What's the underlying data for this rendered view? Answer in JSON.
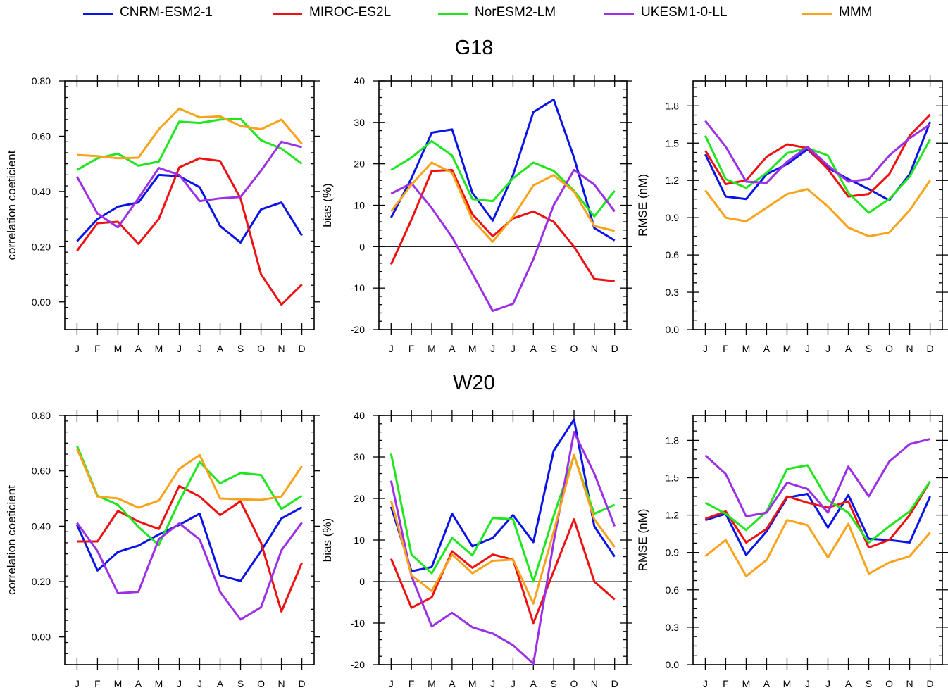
{
  "colors": {
    "CNRM-ESM2-1": "#0a14e6",
    "MIROC-ES2L": "#ee1111",
    "NorESM2-LM": "#1fe61f",
    "UKESM1-0-LL": "#9b30e6",
    "MMM": "#f9a21b"
  },
  "legend": [
    {
      "label": "CNRM-ESM2-1",
      "color": "#0a14e6"
    },
    {
      "label": "MIROC-ES2L",
      "color": "#ee1111"
    },
    {
      "label": "NorESM2-LM",
      "color": "#1fe61f"
    },
    {
      "label": "UKESM1-0-LL",
      "color": "#9b30e6"
    },
    {
      "label": "MMM",
      "color": "#f9a21b"
    }
  ],
  "row_titles": [
    "G18",
    "W20"
  ],
  "chart_data": [
    {
      "type": "line",
      "row": "G18",
      "metric": "corr",
      "categories": [
        "J",
        "F",
        "M",
        "A",
        "M",
        "J",
        "J",
        "A",
        "S",
        "O",
        "N",
        "D"
      ],
      "ylabel": "correlation coeticient",
      "ylim": [
        -0.1,
        0.8
      ],
      "yticks": [
        0.0,
        0.2,
        0.4,
        0.6,
        0.8
      ],
      "ytick_labels": [
        "0.00",
        "0.20",
        "0.40",
        "0.60",
        "0.80"
      ],
      "series": [
        {
          "name": "CNRM-ESM2-1",
          "values": [
            0.22,
            0.3,
            0.345,
            0.36,
            0.46,
            0.455,
            0.415,
            0.275,
            0.215,
            0.335,
            0.36,
            0.24
          ]
        },
        {
          "name": "MIROC-ES2L",
          "values": [
            0.185,
            0.285,
            0.29,
            0.21,
            0.3,
            0.487,
            0.52,
            0.51,
            0.375,
            0.1,
            -0.01,
            0.063
          ]
        },
        {
          "name": "NorESM2-LM",
          "values": [
            0.478,
            0.52,
            0.537,
            0.493,
            0.508,
            0.653,
            0.648,
            0.66,
            0.663,
            0.585,
            0.555,
            0.5
          ]
        },
        {
          "name": "UKESM1-0-LL",
          "values": [
            0.453,
            0.32,
            0.27,
            0.375,
            0.485,
            0.46,
            0.365,
            0.375,
            0.38,
            0.475,
            0.58,
            0.56
          ]
        },
        {
          "name": "MMM",
          "values": [
            0.532,
            0.528,
            0.52,
            0.522,
            0.625,
            0.7,
            0.668,
            0.672,
            0.637,
            0.625,
            0.66,
            0.572
          ]
        }
      ]
    },
    {
      "type": "line",
      "row": "G18",
      "metric": "bias",
      "categories": [
        "J",
        "F",
        "M",
        "A",
        "M",
        "J",
        "J",
        "A",
        "S",
        "O",
        "N",
        "D"
      ],
      "ylabel": "bias (%)",
      "ylim": [
        -20,
        40
      ],
      "yticks": [
        -20,
        -10,
        0,
        10,
        20,
        30,
        40
      ],
      "ytick_labels": [
        "-20",
        "-10",
        "0",
        "10",
        "20",
        "30",
        "40"
      ],
      "zero_line": true,
      "series": [
        {
          "name": "CNRM-ESM2-1",
          "values": [
            7,
            16.5,
            27.5,
            28.3,
            13,
            6.3,
            17.3,
            32.5,
            35.5,
            21.5,
            4.5,
            1.5
          ]
        },
        {
          "name": "MIROC-ES2L",
          "values": [
            -4.3,
            6.5,
            18.3,
            18.5,
            7.8,
            2.5,
            6.8,
            8.5,
            6,
            0,
            -7.8,
            -8.3
          ]
        },
        {
          "name": "NorESM2-LM",
          "values": [
            18.5,
            21.5,
            25.5,
            22,
            11.5,
            11,
            16.5,
            20.3,
            18.3,
            13.5,
            7.3,
            13.5
          ]
        },
        {
          "name": "UKESM1-0-LL",
          "values": [
            12.8,
            15.3,
            9.3,
            2.3,
            -6.5,
            -15.5,
            -13.8,
            -3,
            10,
            18.5,
            15,
            8.5
          ]
        },
        {
          "name": "MMM",
          "values": [
            8.5,
            15,
            20.3,
            17.8,
            6.5,
            1.2,
            7.2,
            14.8,
            17.3,
            13.3,
            5,
            3.8
          ]
        }
      ]
    },
    {
      "type": "line",
      "row": "G18",
      "metric": "rmse",
      "categories": [
        "J",
        "F",
        "M",
        "A",
        "M",
        "J",
        "J",
        "A",
        "S",
        "O",
        "N",
        "D"
      ],
      "ylabel": "RMSE (nM)",
      "ylim": [
        0,
        2.0
      ],
      "yticks": [
        0.0,
        0.3,
        0.6,
        0.9,
        1.2,
        1.5,
        1.8
      ],
      "ytick_labels": [
        "0.0",
        "0.3",
        "0.6",
        "0.9",
        "1.2",
        "1.5",
        "1.8"
      ],
      "series": [
        {
          "name": "CNRM-ESM2-1",
          "values": [
            1.41,
            1.07,
            1.05,
            1.25,
            1.33,
            1.45,
            1.3,
            1.21,
            1.13,
            1.04,
            1.25,
            1.67
          ]
        },
        {
          "name": "MIROC-ES2L",
          "values": [
            1.44,
            1.17,
            1.2,
            1.39,
            1.49,
            1.46,
            1.29,
            1.07,
            1.09,
            1.25,
            1.56,
            1.73
          ]
        },
        {
          "name": "NorESM2-LM",
          "values": [
            1.56,
            1.21,
            1.14,
            1.26,
            1.42,
            1.46,
            1.4,
            1.1,
            0.94,
            1.05,
            1.23,
            1.53
          ]
        },
        {
          "name": "UKESM1-0-LL",
          "values": [
            1.68,
            1.47,
            1.19,
            1.18,
            1.35,
            1.47,
            1.32,
            1.19,
            1.21,
            1.4,
            1.54,
            1.65
          ]
        },
        {
          "name": "MMM",
          "values": [
            1.12,
            0.9,
            0.87,
            0.98,
            1.09,
            1.13,
            0.99,
            0.82,
            0.75,
            0.78,
            0.96,
            1.2
          ]
        }
      ]
    },
    {
      "type": "line",
      "row": "W20",
      "metric": "corr",
      "categories": [
        "J",
        "F",
        "M",
        "A",
        "M",
        "J",
        "J",
        "A",
        "S",
        "O",
        "N",
        "D"
      ],
      "ylabel": "correlation coeticient",
      "ylim": [
        -0.1,
        0.8
      ],
      "yticks": [
        0.0,
        0.2,
        0.4,
        0.6,
        0.8
      ],
      "ytick_labels": [
        "0.00",
        "0.20",
        "0.40",
        "0.60",
        "0.80"
      ],
      "series": [
        {
          "name": "CNRM-ESM2-1",
          "values": [
            0.405,
            0.24,
            0.307,
            0.33,
            0.37,
            0.405,
            0.445,
            0.222,
            0.202,
            0.31,
            0.428,
            0.468
          ]
        },
        {
          "name": "MIROC-ES2L",
          "values": [
            0.345,
            0.345,
            0.455,
            0.417,
            0.39,
            0.545,
            0.507,
            0.44,
            0.49,
            0.34,
            0.092,
            0.268
          ]
        },
        {
          "name": "NorESM2-LM",
          "values": [
            0.69,
            0.51,
            0.477,
            0.397,
            0.332,
            0.49,
            0.632,
            0.555,
            0.592,
            0.585,
            0.462,
            0.51
          ]
        },
        {
          "name": "UKESM1-0-LL",
          "values": [
            0.412,
            0.31,
            0.158,
            0.163,
            0.353,
            0.41,
            0.352,
            0.163,
            0.063,
            0.107,
            0.313,
            0.413
          ]
        },
        {
          "name": "MMM",
          "values": [
            0.68,
            0.507,
            0.5,
            0.467,
            0.492,
            0.607,
            0.657,
            0.5,
            0.497,
            0.495,
            0.507,
            0.617
          ]
        }
      ]
    },
    {
      "type": "line",
      "row": "W20",
      "metric": "bias",
      "categories": [
        "J",
        "F",
        "M",
        "A",
        "M",
        "J",
        "J",
        "A",
        "S",
        "O",
        "N",
        "D"
      ],
      "ylabel": "bias (%)",
      "ylim": [
        -20,
        40
      ],
      "yticks": [
        -20,
        -10,
        0,
        10,
        20,
        30,
        40
      ],
      "ytick_labels": [
        "-20",
        "-10",
        "0",
        "10",
        "20",
        "30",
        "40"
      ],
      "zero_line": true,
      "series": [
        {
          "name": "CNRM-ESM2-1",
          "values": [
            18,
            2.5,
            3.5,
            16.3,
            8.5,
            10.5,
            16,
            9.5,
            31.5,
            39,
            13.3,
            6
          ]
        },
        {
          "name": "MIROC-ES2L",
          "values": [
            5.5,
            -6.3,
            -3.8,
            7.3,
            3.3,
            6.5,
            5.3,
            -10,
            2.5,
            15,
            0,
            -4.3
          ]
        },
        {
          "name": "NorESM2-LM",
          "values": [
            30.8,
            6.5,
            2,
            10.5,
            6.3,
            15.3,
            15,
            0,
            15.8,
            30.3,
            16.3,
            18.5
          ]
        },
        {
          "name": "UKESM1-0-LL",
          "values": [
            24.3,
            1.3,
            -10.8,
            -7.5,
            -11,
            -12.5,
            -15.3,
            -19.8,
            9.5,
            36,
            26,
            13.3
          ]
        },
        {
          "name": "MMM",
          "values": [
            19.5,
            1.5,
            -2.3,
            6.5,
            2,
            5,
            5.3,
            -5.3,
            12,
            30.5,
            15,
            8.3
          ]
        }
      ]
    },
    {
      "type": "line",
      "row": "W20",
      "metric": "rmse",
      "categories": [
        "J",
        "F",
        "M",
        "A",
        "M",
        "J",
        "J",
        "A",
        "S",
        "O",
        "N",
        "D"
      ],
      "ylabel": "RMSE (nM)",
      "ylim": [
        0,
        2.0
      ],
      "yticks": [
        0.0,
        0.3,
        0.6,
        0.9,
        1.2,
        1.5,
        1.8
      ],
      "ytick_labels": [
        "0.0",
        "0.3",
        "0.6",
        "0.9",
        "1.2",
        "1.5",
        "1.8"
      ],
      "series": [
        {
          "name": "CNRM-ESM2-1",
          "values": [
            1.16,
            1.21,
            0.88,
            1.07,
            1.34,
            1.37,
            1.1,
            1.36,
            1.01,
            1.0,
            0.98,
            1.35
          ]
        },
        {
          "name": "MIROC-ES2L",
          "values": [
            1.17,
            1.23,
            0.98,
            1.09,
            1.35,
            1.3,
            1.26,
            1.31,
            0.94,
            1.0,
            1.2,
            1.47
          ]
        },
        {
          "name": "NorESM2-LM",
          "values": [
            1.3,
            1.21,
            1.08,
            1.23,
            1.57,
            1.6,
            1.32,
            1.22,
            0.98,
            1.11,
            1.23,
            1.47
          ]
        },
        {
          "name": "UKESM1-0-LL",
          "values": [
            1.68,
            1.53,
            1.19,
            1.22,
            1.46,
            1.41,
            1.22,
            1.59,
            1.35,
            1.63,
            1.77,
            1.81
          ]
        },
        {
          "name": "MMM",
          "values": [
            0.87,
            1.0,
            0.71,
            0.84,
            1.16,
            1.12,
            0.86,
            1.13,
            0.73,
            0.82,
            0.87,
            1.06
          ]
        }
      ]
    }
  ]
}
